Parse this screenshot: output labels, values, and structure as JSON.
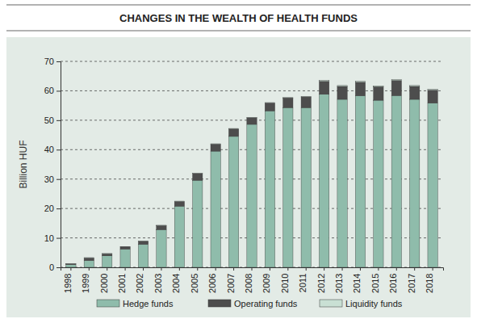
{
  "chart_data": {
    "type": "bar",
    "title": "CHANGES IN THE WEALTH OF HEALTH FUNDS",
    "y_label": "Billion HUF",
    "categories": [
      "1998",
      "1999",
      "2000",
      "2001",
      "2002",
      "2003",
      "2004",
      "2005",
      "2006",
      "2007",
      "2008",
      "2009",
      "2010",
      "2011",
      "2012",
      "2013",
      "2014",
      "2015",
      "2016",
      "2017",
      "2018"
    ],
    "series": [
      {
        "name": "Hedge funds",
        "color": "#8fbcab",
        "values": [
          0.9,
          2.3,
          3.9,
          6.2,
          7.8,
          12.8,
          20.8,
          29.6,
          39.5,
          44.5,
          48.6,
          53.2,
          54.3,
          54.3,
          58.8,
          57.1,
          58.3,
          56.8,
          58.4,
          57.1,
          55.8
        ]
      },
      {
        "name": "Operating funds",
        "color": "#4d4d4d",
        "values": [
          0.3,
          0.9,
          0.7,
          0.7,
          1.1,
          1.4,
          1.6,
          2.3,
          2.4,
          2.6,
          2.3,
          2.7,
          3.3,
          3.6,
          4.4,
          4.4,
          4.6,
          4.6,
          5.1,
          4.4,
          4.4
        ]
      },
      {
        "name": "Liquidity funds",
        "color": "#c9e0d4",
        "values": [
          0.05,
          0.1,
          0.1,
          0.1,
          0.1,
          0.1,
          0.1,
          0.1,
          0.1,
          0.1,
          0.1,
          0.1,
          0.1,
          0.1,
          0.3,
          0.3,
          0.3,
          0.3,
          0.3,
          0.3,
          0.3
        ]
      }
    ],
    "ylim": [
      0,
      70
    ],
    "yticks": [
      0,
      10,
      20,
      30,
      40,
      50,
      60,
      70
    ],
    "stacked": true,
    "grid": true,
    "legend": "bottom"
  }
}
